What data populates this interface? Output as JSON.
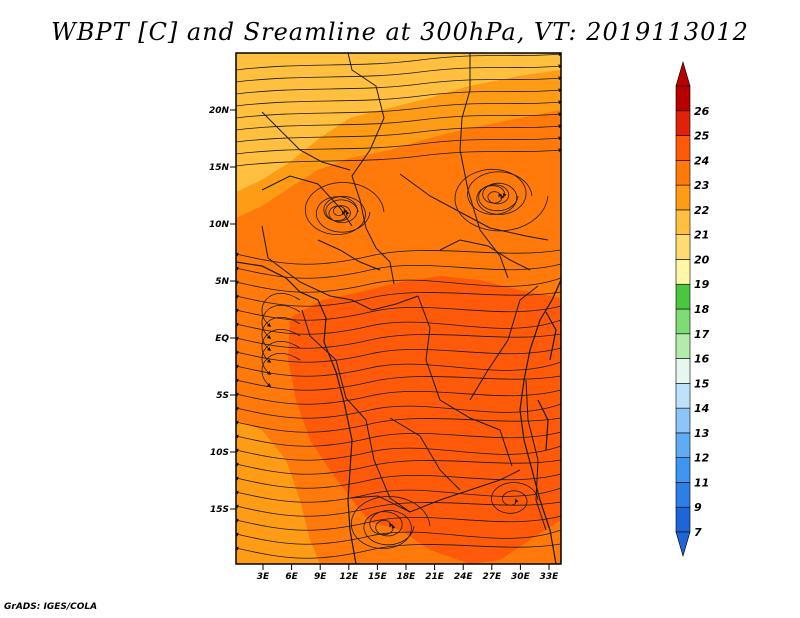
{
  "title": "WBPT [C] and Sreamline at 300hPa, VT: 2019113012",
  "credit": "GrADS: IGES/COLA",
  "map": {
    "lat_labels": [
      "20N",
      "15N",
      "10N",
      "5N",
      "EQ",
      "5S",
      "10S",
      "15S"
    ],
    "lon_labels": [
      "3E",
      "6E",
      "9E",
      "12E",
      "15E",
      "18E",
      "21E",
      "24E",
      "27E",
      "30E",
      "33E"
    ]
  },
  "colorbar": {
    "labels": [
      "7",
      "9",
      "11",
      "12",
      "13",
      "14",
      "15",
      "16",
      "17",
      "18",
      "19",
      "20",
      "21",
      "22",
      "23",
      "24",
      "25",
      "26"
    ],
    "colors": [
      "#1f64d8",
      "#2c7fe6",
      "#3f96f0",
      "#60acf4",
      "#8cc6f8",
      "#bfe2fb",
      "#e6f7ef",
      "#b3ecaa",
      "#7fdc74",
      "#4cc640",
      "#fff7a8",
      "#ffdc73",
      "#ffc040",
      "#ff9c16",
      "#ff7a0a",
      "#ff5a0a",
      "#e0220a",
      "#b80000"
    ]
  },
  "colors": {
    "field_hot": "#ff5a0a",
    "field_warm": "#ff7a0a",
    "field_mild": "#ff9c16",
    "field_cool": "#ffc040"
  }
}
